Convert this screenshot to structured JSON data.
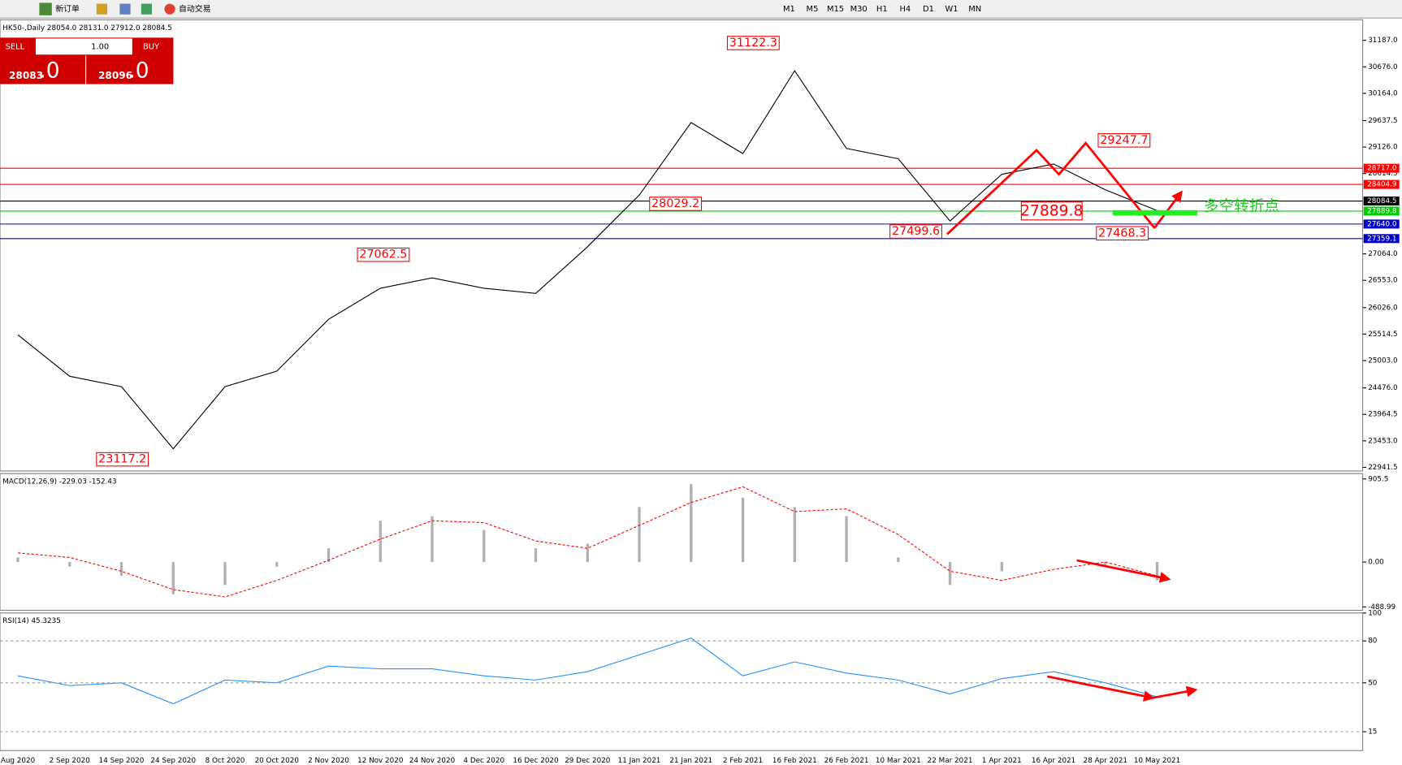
{
  "toolbar": {
    "new_order": "新订单",
    "auto_trading": "自动交易",
    "timeframes": [
      "M1",
      "M5",
      "M15",
      "M30",
      "H1",
      "H4",
      "D1",
      "W1",
      "MN"
    ]
  },
  "trade_panel": {
    "sell": "SELL",
    "buy": "BUY",
    "lots": "1.00",
    "bid_main": "28083",
    "bid_big": ".0",
    "ask_main": "28096",
    "ask_big": ".0"
  },
  "chart_data": [
    {
      "type": "line",
      "title": "HK50-,Daily 28054.0 28131.0 27912.0 28084.5",
      "categories": [
        "Aug 2020",
        "2 Sep 2020",
        "14 Sep 2020",
        "24 Sep 2020",
        "8 Oct 2020",
        "20 Oct 2020",
        "2 Nov 2020",
        "12 Nov 2020",
        "24 Nov 2020",
        "4 Dec 2020",
        "16 Dec 2020",
        "29 Dec 2020",
        "11 Jan 2021",
        "21 Jan 2021",
        "2 Feb 2021",
        "16 Feb 2021",
        "26 Feb 2021",
        "10 Mar 2021",
        "22 Mar 2021",
        "1 Apr 2021",
        "16 Apr 2021",
        "28 Apr 2021",
        "10 May 2021"
      ],
      "values": [
        25500,
        24700,
        24500,
        23300,
        24500,
        24800,
        25800,
        26400,
        26600,
        26400,
        26300,
        27200,
        28200,
        29600,
        29000,
        30600,
        29100,
        28900,
        27700,
        28600,
        28800,
        28300,
        27900
      ],
      "color": "#000000",
      "ylim": [
        22872,
        31584
      ],
      "yticks": [
        {
          "value": 31187.0,
          "label": "31187.0"
        },
        {
          "value": 30676.0,
          "label": "30676.0"
        },
        {
          "value": 30164.0,
          "label": "30164.0"
        },
        {
          "value": 29637.5,
          "label": "29637.5"
        },
        {
          "value": 29126.0,
          "label": "29126.0"
        },
        {
          "value": 28614.5,
          "label": "28614.5"
        },
        {
          "value": 27064.0,
          "label": "27064.0"
        },
        {
          "value": 26553.0,
          "label": "26553.0"
        },
        {
          "value": 26026.0,
          "label": "26026.0"
        },
        {
          "value": 25514.5,
          "label": "25514.5"
        },
        {
          "value": 25003.0,
          "label": "25003.0"
        },
        {
          "value": 24476.0,
          "label": "24476.0"
        },
        {
          "value": 23964.5,
          "label": "23964.5"
        },
        {
          "value": 23453.0,
          "label": "23453.0"
        },
        {
          "value": 22941.5,
          "label": "22941.5"
        }
      ],
      "levels": [
        {
          "value": 28717.0,
          "label": "28717.0",
          "color": "#ff0000"
        },
        {
          "value": 28404.9,
          "label": "28404.9",
          "color": "#ff0000"
        },
        {
          "value": 28084.5,
          "label": "28084.5",
          "color": "#000000"
        },
        {
          "value": 27889.8,
          "label": "27889.8",
          "color": "#00cc00"
        },
        {
          "value": 27640.0,
          "label": "27640.0",
          "color": "#0000cc"
        },
        {
          "value": 27359.1,
          "label": "27359.1",
          "color": "#0000cc"
        }
      ],
      "annotations": [
        {
          "value": 31122.3,
          "label": "31122.3"
        },
        {
          "value": 29247.7,
          "label": "29247.7"
        },
        {
          "value": 28029.2,
          "label": "28029.2"
        },
        {
          "value": 27889.8,
          "label": "27889.8"
        },
        {
          "value": 27499.6,
          "label": "27499.6"
        },
        {
          "value": 27468.3,
          "label": "27468.3"
        },
        {
          "value": 27062.5,
          "label": "27062.5"
        },
        {
          "value": 23117.2,
          "label": "23117.2"
        }
      ],
      "note": "多空转折点"
    },
    {
      "type": "macd",
      "title": "MACD(12,26,9) -229.03 -152.43",
      "series": [
        {
          "values": [
            50,
            -50,
            -150,
            -350,
            -250,
            -50,
            150,
            450,
            500,
            350,
            150,
            200,
            600,
            850,
            700,
            600,
            500,
            50,
            -250,
            -100,
            0,
            -50,
            -200
          ],
          "color": "#b0b0b0"
        },
        {
          "values": [
            100,
            50,
            -100,
            -300,
            -380,
            -200,
            20,
            250,
            450,
            430,
            230,
            150,
            400,
            650,
            820,
            550,
            580,
            300,
            -100,
            -200,
            -80,
            0,
            -150
          ],
          "color": "#ff0000"
        }
      ],
      "ylim": [
        -526,
        964
      ],
      "yticks": [
        905.5,
        {
          "value": 0,
          "label": "0.00"
        },
        -488.99
      ]
    },
    {
      "type": "line",
      "title": "RSI(14) 45.3235",
      "values": [
        55,
        48,
        50,
        35,
        52,
        50,
        62,
        60,
        60,
        55,
        52,
        58,
        70,
        82,
        55,
        65,
        57,
        52,
        42,
        53,
        58,
        50,
        40
      ],
      "color": "#1e90ff",
      "ylim": [
        1.5,
        100
      ],
      "yticks": [
        100,
        80,
        50,
        15
      ]
    }
  ]
}
